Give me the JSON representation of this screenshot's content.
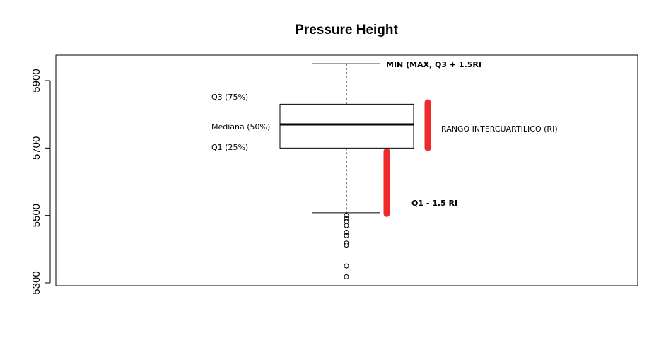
{
  "chart_data": {
    "type": "boxplot",
    "title": "Pressure Height",
    "ylim": [
      5290,
      5975
    ],
    "yticks": [
      5300,
      5500,
      5700,
      5900
    ],
    "ytick_labels": [
      "5300",
      "5500",
      "5700",
      "5900"
    ],
    "box": {
      "whisker_min": 5508,
      "q1": 5700,
      "median": 5770,
      "q3": 5830,
      "whisker_max": 5950
    },
    "outliers": [
      5500,
      5490,
      5482,
      5470,
      5450,
      5440,
      5418,
      5412,
      5350,
      5318
    ],
    "annotations": {
      "max_label": "MIN (MAX, Q3 + 1.5RI",
      "q3_label": "Q3 (75%)",
      "median_label": "Mediana (50%)",
      "q1_label": "Q1 (25%)",
      "iqr_label": "RANGO INTERCUARTILICO (RI)",
      "lower_label": "Q1 - 1.5 RI"
    },
    "highlight_bars": [
      {
        "name": "iqr-bar",
        "from": 5700,
        "to": 5835,
        "color": "#ee2a2a"
      },
      {
        "name": "lower-fence-bar",
        "from": 5505,
        "to": 5690,
        "color": "#ee2a2a"
      }
    ],
    "grid": false
  }
}
